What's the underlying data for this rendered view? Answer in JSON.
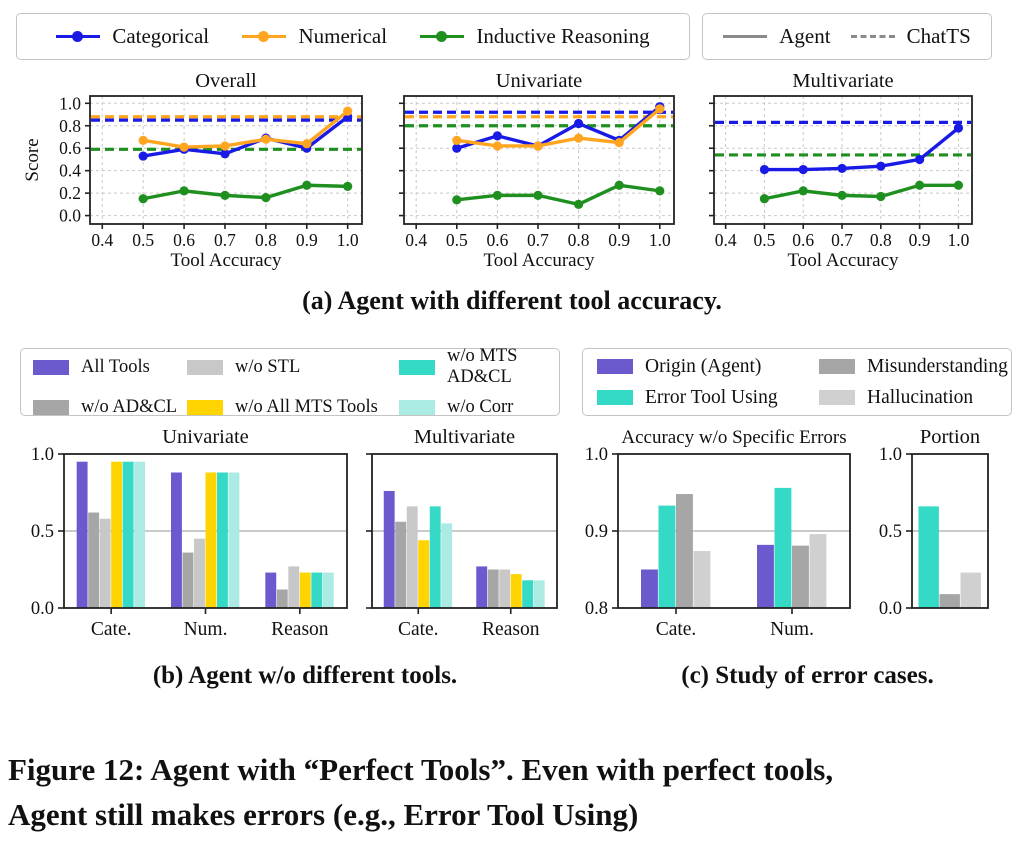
{
  "colors": {
    "categorical_blue": "#1a1ae6",
    "numerical_orange": "#ffa520",
    "inductive_green": "#1f8f1f",
    "agent_gray": "#8a8a8a",
    "all_tools_purple": "#6a5acd",
    "wo_adcl_gray": "#a6a6a6",
    "wo_stl_lightgray": "#c8c8c8",
    "wo_mts_yellow": "#ffd400",
    "wo_mts_adcl_teal": "#35dac6",
    "wo_corr_palecyan": "#abebe3",
    "hallucination_lightgray": "#d0d0d0"
  },
  "legend_top": {
    "items": [
      {
        "label": "Categorical",
        "color": "#1a1ae6"
      },
      {
        "label": "Numerical",
        "color": "#ffa520"
      },
      {
        "label": "Inductive Reasoning",
        "color": "#1f8f1f"
      }
    ],
    "lines": [
      {
        "label": "Agent",
        "style": "solid"
      },
      {
        "label": "ChatTS",
        "style": "dashed"
      }
    ]
  },
  "legend_b": {
    "items": [
      {
        "label": "All Tools",
        "color": "#6a5acd"
      },
      {
        "label": "w/o STL",
        "color": "#c8c8c8"
      },
      {
        "label": "w/o MTS AD&CL",
        "color": "#35dac6"
      },
      {
        "label": "w/o AD&CL",
        "color": "#a6a6a6"
      },
      {
        "label": "w/o All MTS Tools",
        "color": "#ffd400"
      },
      {
        "label": "w/o Corr",
        "color": "#abebe3"
      }
    ]
  },
  "legend_c": {
    "items": [
      {
        "label": "Origin (Agent)",
        "color": "#6a5acd"
      },
      {
        "label": "Misunderstanding",
        "color": "#a6a6a6"
      },
      {
        "label": "Error Tool Using",
        "color": "#35dac6"
      },
      {
        "label": "Hallucination",
        "color": "#d0d0d0"
      }
    ]
  },
  "captions": {
    "a": "(a) Agent with different tool accuracy.",
    "b": "(b) Agent w/o different tools.",
    "c": "(c) Study of error cases.",
    "figure_line1": "Figure 12: Agent with “Perfect Tools”. Even with perfect tools,",
    "figure_line2": "Agent still makes errors (e.g., Error Tool Using)"
  },
  "chart_data": [
    {
      "id": "overall-line",
      "type": "line",
      "title": "Overall",
      "ylabel": "Score",
      "xlabel": "Tool Accuracy",
      "x": [
        0.5,
        0.6,
        0.7,
        0.8,
        0.9,
        1.0
      ],
      "xlim": [
        0.37,
        1.035
      ],
      "ylim": [
        -0.075,
        1.065
      ],
      "xtick_vals": [
        0.4,
        0.5,
        0.6,
        0.7,
        0.8,
        0.9,
        1.0
      ],
      "xtick_labels": [
        "0.4",
        "0.5",
        "0.6",
        "0.7",
        "0.8",
        "0.9",
        "1.0"
      ],
      "ytick_vals": [
        0.0,
        0.2,
        0.4,
        0.6,
        0.8,
        1.0
      ],
      "ytick_labels": [
        "0.0",
        "0.2",
        "0.4",
        "0.6",
        "0.8",
        "1.0"
      ],
      "series": [
        {
          "name": "Categorical",
          "color": "#1a1ae6",
          "values": [
            0.53,
            0.59,
            0.55,
            0.69,
            0.6,
            0.88
          ]
        },
        {
          "name": "Numerical",
          "color": "#ffa520",
          "values": [
            0.67,
            0.61,
            0.62,
            0.68,
            0.64,
            0.93
          ]
        },
        {
          "name": "Inductive Reasoning",
          "color": "#1f8f1f",
          "values": [
            0.15,
            0.22,
            0.18,
            0.16,
            0.27,
            0.26
          ]
        }
      ],
      "chatts_refs": [
        {
          "name": "Categorical",
          "color": "#1a1ae6",
          "value": 0.85
        },
        {
          "name": "Numerical",
          "color": "#ffa520",
          "value": 0.88
        },
        {
          "name": "Inductive Reasoning",
          "color": "#1f8f1f",
          "value": 0.59
        }
      ]
    },
    {
      "id": "univariate-line",
      "type": "line",
      "title": "Univariate",
      "ylabel": null,
      "xlabel": "Tool Accuracy",
      "x": [
        0.5,
        0.6,
        0.7,
        0.8,
        0.9,
        1.0
      ],
      "xlim": [
        0.37,
        1.035
      ],
      "ylim": [
        -0.075,
        1.065
      ],
      "xtick_vals": [
        0.4,
        0.5,
        0.6,
        0.7,
        0.8,
        0.9,
        1.0
      ],
      "xtick_labels": [
        "0.4",
        "0.5",
        "0.6",
        "0.7",
        "0.8",
        "0.9",
        "1.0"
      ],
      "ytick_vals": [
        0.0,
        0.2,
        0.4,
        0.6,
        0.8,
        1.0
      ],
      "ytick_labels": null,
      "series": [
        {
          "name": "Categorical",
          "color": "#1a1ae6",
          "values": [
            0.6,
            0.71,
            0.62,
            0.82,
            0.67,
            0.97
          ]
        },
        {
          "name": "Numerical",
          "color": "#ffa520",
          "values": [
            0.67,
            0.62,
            0.62,
            0.69,
            0.65,
            0.95
          ]
        },
        {
          "name": "Inductive Reasoning",
          "color": "#1f8f1f",
          "values": [
            0.14,
            0.18,
            0.18,
            0.1,
            0.27,
            0.22
          ]
        }
      ],
      "chatts_refs": [
        {
          "name": "Categorical",
          "color": "#1a1ae6",
          "value": 0.92
        },
        {
          "name": "Numerical",
          "color": "#ffa520",
          "value": 0.88
        },
        {
          "name": "Inductive Reasoning",
          "color": "#1f8f1f",
          "value": 0.8
        }
      ]
    },
    {
      "id": "multivariate-line",
      "type": "line",
      "title": "Multivariate",
      "ylabel": null,
      "xlabel": "Tool Accuracy",
      "x": [
        0.5,
        0.6,
        0.7,
        0.8,
        0.9,
        1.0
      ],
      "xlim": [
        0.37,
        1.035
      ],
      "ylim": [
        -0.075,
        1.065
      ],
      "xtick_vals": [
        0.4,
        0.5,
        0.6,
        0.7,
        0.8,
        0.9,
        1.0
      ],
      "xtick_labels": [
        "0.4",
        "0.5",
        "0.6",
        "0.7",
        "0.8",
        "0.9",
        "1.0"
      ],
      "ytick_vals": [
        0.0,
        0.2,
        0.4,
        0.6,
        0.8,
        1.0
      ],
      "ytick_labels": null,
      "series": [
        {
          "name": "Categorical",
          "color": "#1a1ae6",
          "values": [
            0.41,
            0.41,
            0.42,
            0.44,
            0.5,
            0.78
          ]
        },
        {
          "name": "Inductive Reasoning",
          "color": "#1f8f1f",
          "values": [
            0.15,
            0.22,
            0.18,
            0.17,
            0.27,
            0.27
          ]
        }
      ],
      "chatts_refs": [
        {
          "name": "Categorical",
          "color": "#1a1ae6",
          "value": 0.83
        },
        {
          "name": "Inductive Reasoning",
          "color": "#1f8f1f",
          "value": 0.54
        }
      ]
    },
    {
      "id": "univariate-bars",
      "type": "bar",
      "title": "Univariate",
      "categories": [
        "Cate.",
        "Num.",
        "Reason"
      ],
      "ylim": [
        0.0,
        1.0
      ],
      "hline": 0.5,
      "ytick_vals": [
        0.0,
        0.5,
        1.0
      ],
      "ytick_labels": [
        "0.0",
        "0.5",
        "1.0"
      ],
      "series": [
        {
          "name": "All Tools",
          "color": "#6a5acd",
          "values": [
            0.95,
            0.88,
            0.23
          ]
        },
        {
          "name": "w/o AD&CL",
          "color": "#a6a6a6",
          "values": [
            0.62,
            0.36,
            0.12
          ]
        },
        {
          "name": "w/o STL",
          "color": "#c8c8c8",
          "values": [
            0.58,
            0.45,
            0.27
          ]
        },
        {
          "name": "w/o All MTS Tools",
          "color": "#ffd400",
          "values": [
            0.95,
            0.88,
            0.23
          ]
        },
        {
          "name": "w/o MTS AD&CL",
          "color": "#35dac6",
          "values": [
            0.95,
            0.88,
            0.23
          ]
        },
        {
          "name": "w/o Corr",
          "color": "#abebe3",
          "values": [
            0.95,
            0.88,
            0.23
          ]
        }
      ]
    },
    {
      "id": "multivariate-bars",
      "type": "bar",
      "title": "Multivariate",
      "categories": [
        "Cate.",
        "Reason"
      ],
      "ylim": [
        0.0,
        1.0
      ],
      "hline": 0.5,
      "ytick_vals": [
        0.0,
        0.5,
        1.0
      ],
      "ytick_labels": null,
      "series": [
        {
          "name": "All Tools",
          "color": "#6a5acd",
          "values": [
            0.76,
            0.27
          ]
        },
        {
          "name": "w/o AD&CL",
          "color": "#a6a6a6",
          "values": [
            0.56,
            0.25
          ]
        },
        {
          "name": "w/o STL",
          "color": "#c8c8c8",
          "values": [
            0.66,
            0.25
          ]
        },
        {
          "name": "w/o All MTS Tools",
          "color": "#ffd400",
          "values": [
            0.44,
            0.22
          ]
        },
        {
          "name": "w/o MTS AD&CL",
          "color": "#35dac6",
          "values": [
            0.66,
            0.18
          ]
        },
        {
          "name": "w/o Corr",
          "color": "#abebe3",
          "values": [
            0.55,
            0.18
          ]
        }
      ]
    },
    {
      "id": "accuracy-bars",
      "type": "bar",
      "title": "Accuracy w/o Specific Errors",
      "categories": [
        "Cate.",
        "Num."
      ],
      "ylim": [
        0.8,
        1.0
      ],
      "hline": 0.9,
      "ytick_vals": [
        0.8,
        0.9,
        1.0
      ],
      "ytick_labels": [
        "0.8",
        "0.9",
        "1.0"
      ],
      "title_size": 19,
      "series": [
        {
          "name": "Origin (Agent)",
          "color": "#6a5acd",
          "values": [
            0.85,
            0.882
          ]
        },
        {
          "name": "Error Tool Using",
          "color": "#35dac6",
          "values": [
            0.933,
            0.956
          ]
        },
        {
          "name": "Misunderstanding",
          "color": "#a6a6a6",
          "values": [
            0.948,
            0.881
          ]
        },
        {
          "name": "Hallucination",
          "color": "#d0d0d0",
          "values": [
            0.874,
            0.896
          ]
        }
      ]
    },
    {
      "id": "portion-bars",
      "type": "bar",
      "title": "Portion",
      "categories": [
        ""
      ],
      "ylim": [
        0.0,
        1.0
      ],
      "hline": 0.5,
      "ytick_vals": [
        0.0,
        0.5,
        1.0
      ],
      "ytick_labels": [
        "0.0",
        "0.5",
        "1.0"
      ],
      "series": [
        {
          "name": "Error Tool Using",
          "color": "#35dac6",
          "values": [
            0.66
          ]
        },
        {
          "name": "Misunderstanding",
          "color": "#a6a6a6",
          "values": [
            0.09
          ]
        },
        {
          "name": "Hallucination",
          "color": "#d0d0d0",
          "values": [
            0.23
          ]
        }
      ]
    }
  ]
}
